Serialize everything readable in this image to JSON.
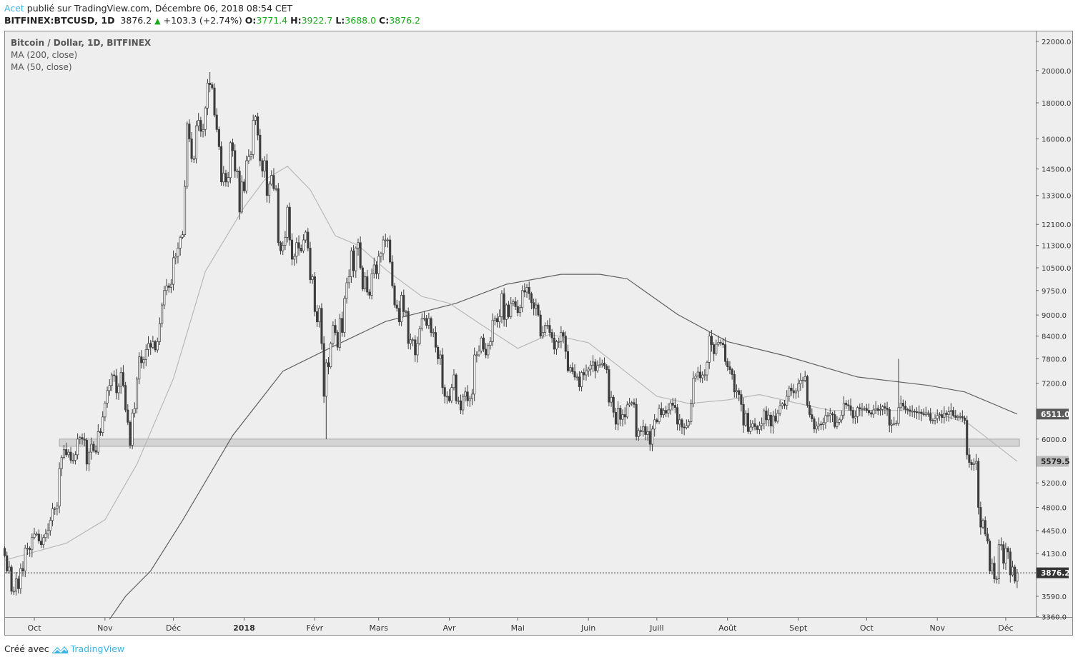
{
  "header": {
    "author": "Acet",
    "published_text": "publié sur TradingView.com, Décembre 06, 2018 08:54 CET",
    "symbol": "BITFINEX:BTCUSD, 1D",
    "last": "3876.2",
    "change": "+103.3 (+2.74%)",
    "open_label": "O:",
    "open": "3771.4",
    "high_label": "H:",
    "high": "3922.7",
    "low_label": "L:",
    "low": "3688.0",
    "close_label": "C:",
    "close": "3876.2",
    "up_icon": "triangle-up-icon"
  },
  "footer": {
    "created_with": "Créé avec",
    "brand": "TradingView",
    "logo_icon": "tradingview-cloud-icon"
  },
  "colors": {
    "background": "#eeeeee",
    "candle_down": "#3d3d3d",
    "candle_up_fill": "#ffffff",
    "ma200": "#606060",
    "ma50": "#b8b8b8",
    "support_zone": "#d4d4d4",
    "accent": "#3bb3e4",
    "positive": "#1ca91c"
  },
  "chart_data": {
    "type": "candlestick",
    "title": "Bitcoin / Dollar, 1D, BITFINEX",
    "y_scale": "log",
    "ylim": [
      3300,
      22500
    ],
    "grid": false,
    "legend_placement": "top-left",
    "y_ticks": [
      "22000.0",
      "20000.0",
      "18000.0",
      "16000.0",
      "14500.0",
      "13300.0",
      "12100.0",
      "11300.0",
      "10500.0",
      "9750.0",
      "9000.0",
      "8400.0",
      "7800.0",
      "7200.0",
      "6000.0",
      "5200.0",
      "4800.0",
      "4450.0",
      "4130.0",
      "3590.0",
      "3360.0"
    ],
    "x_ticks": [
      {
        "label": "Oct",
        "date": "2017-10-01",
        "bold": false
      },
      {
        "label": "Nov",
        "date": "2017-11-01",
        "bold": false
      },
      {
        "label": "Déc",
        "date": "2017-12-01",
        "bold": false
      },
      {
        "label": "2018",
        "date": "2018-01-01",
        "bold": true
      },
      {
        "label": "Févr",
        "date": "2018-02-01",
        "bold": false
      },
      {
        "label": "Mars",
        "date": "2018-03-01",
        "bold": false
      },
      {
        "label": "Avr",
        "date": "2018-04-01",
        "bold": false
      },
      {
        "label": "Mai",
        "date": "2018-05-01",
        "bold": false
      },
      {
        "label": "Juin",
        "date": "2018-06-01",
        "bold": false
      },
      {
        "label": "Juill",
        "date": "2018-07-01",
        "bold": false
      },
      {
        "label": "Août",
        "date": "2018-08-01",
        "bold": false
      },
      {
        "label": "Sept",
        "date": "2018-09-01",
        "bold": false
      },
      {
        "label": "Oct",
        "date": "2018-10-01",
        "bold": false
      },
      {
        "label": "Nov",
        "date": "2018-11-01",
        "bold": false
      },
      {
        "label": "Déc",
        "date": "2018-12-01",
        "bold": false
      }
    ],
    "first_open": 4200,
    "daily_closes": [
      {
        "month": "2017-09",
        "start_day": 18,
        "closes": [
          4100,
          3900,
          3950,
          3650,
          3650,
          3800,
          3680,
          3930,
          3900,
          4200,
          4200,
          4180,
          4350
        ]
      },
      {
        "month": "2017-10",
        "start_day": 1,
        "closes": [
          4400,
          4400,
          4300,
          4250,
          4350,
          4400,
          4450,
          4600,
          4780,
          4780,
          4820,
          5450,
          5650,
          5800,
          5700,
          5750,
          5600,
          5600,
          5700,
          6000,
          6030,
          6000,
          5980,
          5530,
          5750,
          5900,
          5780,
          5750,
          6150,
          6130,
          6450
        ]
      },
      {
        "month": "2017-11",
        "start_day": 1,
        "closes": [
          6750,
          7030,
          7150,
          7400,
          7380,
          6980,
          7130,
          7460,
          7150,
          6600,
          6340,
          5880,
          6530,
          6630,
          7300,
          7850,
          7700,
          7780,
          8040,
          8200,
          8100,
          8250,
          8030,
          8250,
          8750,
          9300,
          9750,
          9900,
          9850,
          9950
        ]
      },
      {
        "month": "2017-12",
        "start_day": 1,
        "closes": [
          10850,
          10900,
          11200,
          11600,
          11700,
          13700,
          16800,
          16000,
          15000,
          15000,
          16700,
          17000,
          16400,
          16500,
          17700,
          19200,
          19100,
          18900,
          17300,
          16500,
          15600,
          13900,
          14300,
          13900,
          14100,
          15800,
          15400,
          14400,
          14400,
          12600,
          13900
        ]
      },
      {
        "month": "2018-01",
        "start_day": 1,
        "closes": [
          13500,
          14900,
          15100,
          15200,
          17000,
          17200,
          16200,
          14900,
          14400,
          14900,
          13300,
          13800,
          14200,
          13600,
          13600,
          11400,
          11100,
          11300,
          11600,
          12800,
          11500,
          10800,
          10900,
          11400,
          11200,
          11100,
          11500,
          11800,
          11200,
          10100,
          10200
        ]
      },
      {
        "month": "2018-02",
        "start_day": 1,
        "closes": [
          9100,
          8800,
          9200,
          8200,
          6900,
          7700,
          7600,
          8200,
          8700,
          8500,
          8100,
          8900,
          8500,
          9500,
          10000,
          10200,
          11100,
          10400,
          11200,
          11400,
          10500,
          9800,
          10200,
          9700,
          9600,
          10300,
          10600,
          10300
        ]
      },
      {
        "month": "2018-03",
        "start_day": 1,
        "closes": [
          10900,
          11000,
          11500,
          11500,
          11500,
          10700,
          9900,
          9300,
          9200,
          8800,
          9600,
          9100,
          9100,
          8200,
          8300,
          8300,
          7900,
          8200,
          8600,
          8900,
          8900,
          8700,
          8900,
          8500,
          8500,
          8100,
          7800,
          7900,
          7100,
          6900,
          6900
        ]
      },
      {
        "month": "2018-04",
        "start_day": 1,
        "closes": [
          6800,
          7100,
          7400,
          6800,
          6800,
          6600,
          6900,
          7000,
          6800,
          6850,
          6950,
          7900,
          7900,
          8000,
          8350,
          8050,
          7900,
          8150,
          8250,
          8850,
          8900,
          8800,
          8950,
          9650,
          8870,
          9300,
          8950,
          9350,
          9400,
          9250
        ]
      },
      {
        "month": "2018-05",
        "start_day": 1,
        "closes": [
          9070,
          9220,
          9750,
          9700,
          9850,
          9650,
          9370,
          9200,
          9300,
          9000,
          8400,
          8500,
          8700,
          8700,
          8500,
          8350,
          8050,
          8250,
          8250,
          8500,
          8400,
          7990,
          7500,
          7580,
          7480,
          7350,
          7350,
          7120,
          7460,
          7400,
          7500
        ]
      },
      {
        "month": "2018-06",
        "start_day": 1,
        "closes": [
          7540,
          7640,
          7720,
          7500,
          7630,
          7650,
          7690,
          7620,
          7530,
          6770,
          6880,
          6550,
          6300,
          6640,
          6400,
          6500,
          6450,
          6710,
          6740,
          6760,
          6720,
          6050,
          6170,
          6150,
          6250,
          6090,
          6150,
          5900,
          6200,
          6390
        ]
      },
      {
        "month": "2018-07",
        "start_day": 1,
        "closes": [
          6350,
          6630,
          6500,
          6590,
          6530,
          6600,
          6750,
          6700,
          6650,
          6300,
          6390,
          6240,
          6230,
          6270,
          6350,
          6730,
          7320,
          7370,
          7470,
          7330,
          7400,
          7400,
          7710,
          8400,
          8170,
          7930,
          8180,
          8230,
          8210,
          8170,
          7730
        ]
      },
      {
        "month": "2018-08",
        "start_day": 1,
        "closes": [
          7600,
          7530,
          7410,
          7000,
          7030,
          6940,
          6720,
          6280,
          6530,
          6150,
          6240,
          6310,
          6250,
          6190,
          6270,
          6310,
          6580,
          6390,
          6490,
          6260,
          6470,
          6360,
          6530,
          6690,
          6730,
          6700,
          6900,
          7090,
          7030,
          6980,
          7020
        ]
      },
      {
        "month": "2018-09",
        "start_day": 1,
        "closes": [
          7190,
          7270,
          7270,
          7360,
          6700,
          6500,
          6410,
          6200,
          6260,
          6300,
          6290,
          6330,
          6480,
          6480,
          6520,
          6500,
          6250,
          6340,
          6390,
          6490,
          6750,
          6710,
          6690,
          6590,
          6430,
          6460,
          6650,
          6620,
          6620,
          6630
        ]
      },
      {
        "month": "2018-10",
        "start_day": 1,
        "closes": [
          6590,
          6540,
          6510,
          6600,
          6630,
          6590,
          6610,
          6670,
          6640,
          6610,
          6280,
          6300,
          6310,
          6320,
          6650,
          6750,
          6680,
          6610,
          6600,
          6570,
          6570,
          6560,
          6540,
          6550,
          6520,
          6500,
          6510,
          6520,
          6380,
          6380,
          6420
        ]
      },
      {
        "month": "2018-11",
        "start_day": 1,
        "closes": [
          6480,
          6500,
          6440,
          6530,
          6500,
          6560,
          6590,
          6480,
          6440,
          6460,
          6460,
          6430,
          6380,
          5700,
          5560,
          5520,
          5540,
          5580,
          4800,
          4500,
          4600,
          4400,
          4300,
          3900,
          4000,
          3800,
          3800,
          4250,
          4250,
          4000
        ]
      },
      {
        "month": "2018-12",
        "start_day": 1,
        "closes": [
          4200,
          4150,
          3850,
          3950,
          3771.4,
          3876.2
        ]
      }
    ],
    "wick_extremes": [
      {
        "date": "2017-12-17",
        "high": 19900
      },
      {
        "date": "2018-02-06",
        "low": 6000
      },
      {
        "date": "2018-10-15",
        "high": 7800
      },
      {
        "date": "2018-12-06",
        "high": 3922.7,
        "low": 3688.0
      }
    ],
    "series": [
      {
        "name": "MA (200, close)",
        "type": "line",
        "points": [
          [
            "2017-11-03",
            3330
          ],
          [
            "2017-11-10",
            3590
          ],
          [
            "2017-11-21",
            3900
          ],
          [
            "2017-12-05",
            4600
          ],
          [
            "2017-12-27",
            6070
          ],
          [
            "2018-01-18",
            7490
          ],
          [
            "2018-02-09",
            8120
          ],
          [
            "2018-03-04",
            8810
          ],
          [
            "2018-04-04",
            9350
          ],
          [
            "2018-04-26",
            9950
          ],
          [
            "2018-05-20",
            10280
          ],
          [
            "2018-06-06",
            10280
          ],
          [
            "2018-06-18",
            10130
          ],
          [
            "2018-07-10",
            9020
          ],
          [
            "2018-08-01",
            8250
          ],
          [
            "2018-08-26",
            7880
          ],
          [
            "2018-09-27",
            7350
          ],
          [
            "2018-10-28",
            7150
          ],
          [
            "2018-11-13",
            7000
          ],
          [
            "2018-12-06",
            6511.0
          ]
        ]
      },
      {
        "name": "MA (50, close)",
        "type": "line",
        "points": [
          [
            "2017-09-18",
            4040
          ],
          [
            "2017-10-01",
            4150
          ],
          [
            "2017-10-15",
            4270
          ],
          [
            "2017-11-01",
            4610
          ],
          [
            "2017-11-15",
            5530
          ],
          [
            "2017-12-01",
            7310
          ],
          [
            "2017-12-15",
            10380
          ],
          [
            "2018-01-01",
            12800
          ],
          [
            "2018-01-10",
            14000
          ],
          [
            "2018-01-20",
            14630
          ],
          [
            "2018-01-30",
            13550
          ],
          [
            "2018-02-10",
            11660
          ],
          [
            "2018-02-20",
            11300
          ],
          [
            "2018-03-05",
            10380
          ],
          [
            "2018-03-20",
            9560
          ],
          [
            "2018-04-01",
            9350
          ],
          [
            "2018-04-15",
            8720
          ],
          [
            "2018-05-01",
            8070
          ],
          [
            "2018-05-15",
            8450
          ],
          [
            "2018-06-01",
            8220
          ],
          [
            "2018-06-15",
            7580
          ],
          [
            "2018-07-01",
            6900
          ],
          [
            "2018-07-15",
            6740
          ],
          [
            "2018-08-01",
            6820
          ],
          [
            "2018-08-15",
            6940
          ],
          [
            "2018-09-01",
            6740
          ],
          [
            "2018-09-15",
            6590
          ],
          [
            "2018-10-01",
            6590
          ],
          [
            "2018-10-15",
            6590
          ],
          [
            "2018-11-01",
            6530
          ],
          [
            "2018-11-15",
            6300
          ],
          [
            "2018-12-06",
            5579.5
          ]
        ]
      }
    ],
    "support_zone": {
      "from": "2017-10-12",
      "to": "2018-12-07",
      "low": 5860,
      "high": 6000
    },
    "price_badges": [
      {
        "label": "6511.0",
        "value": 6511.0,
        "series": "MA (200, close)"
      },
      {
        "label": "5579.5",
        "value": 5579.5,
        "series": "MA (50, close)"
      },
      {
        "label": "3876.2",
        "value": 3876.2,
        "series": "last"
      }
    ]
  }
}
